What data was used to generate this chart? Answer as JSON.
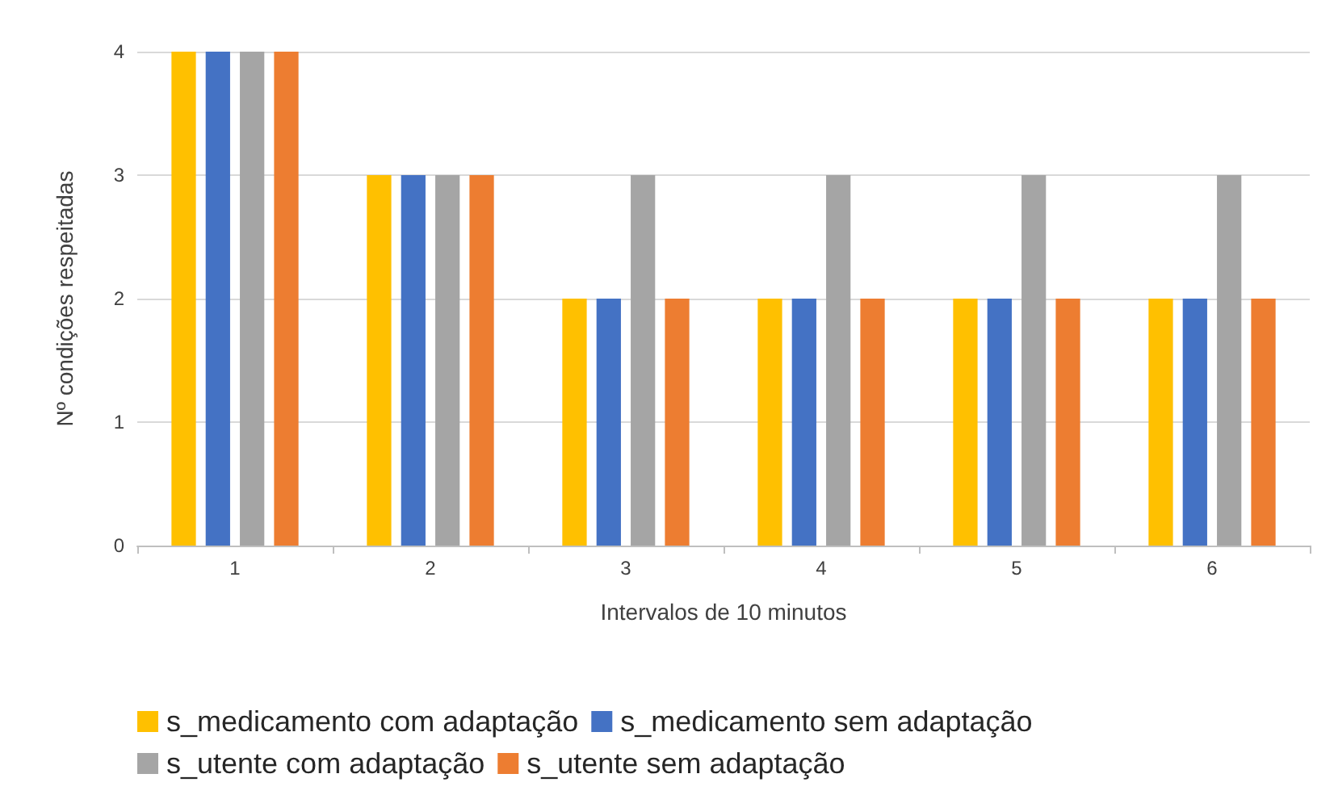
{
  "chart_data": {
    "type": "bar",
    "xlabel": "Intervalos de 10 minutos",
    "ylabel": "Nº condições respeitadas",
    "categories": [
      "1",
      "2",
      "3",
      "4",
      "5",
      "6"
    ],
    "series": [
      {
        "name": "s_medicamento com adaptação",
        "color": "#ffc000",
        "values": [
          4,
          3,
          2,
          2,
          2,
          2
        ]
      },
      {
        "name": "s_medicamento sem adaptação",
        "color": "#4472c4",
        "values": [
          4,
          3,
          2,
          2,
          2,
          2
        ]
      },
      {
        "name": "s_utente com adaptação",
        "color": "#a5a5a5",
        "values": [
          4,
          3,
          3,
          3,
          3,
          3
        ]
      },
      {
        "name": "s_utente sem adaptação",
        "color": "#ed7d31",
        "values": [
          4,
          3,
          2,
          2,
          2,
          2
        ]
      }
    ],
    "ylim": [
      0,
      4
    ],
    "yticks": [
      0,
      1,
      2,
      3,
      4
    ],
    "grid": "y",
    "legend": "bottom"
  }
}
